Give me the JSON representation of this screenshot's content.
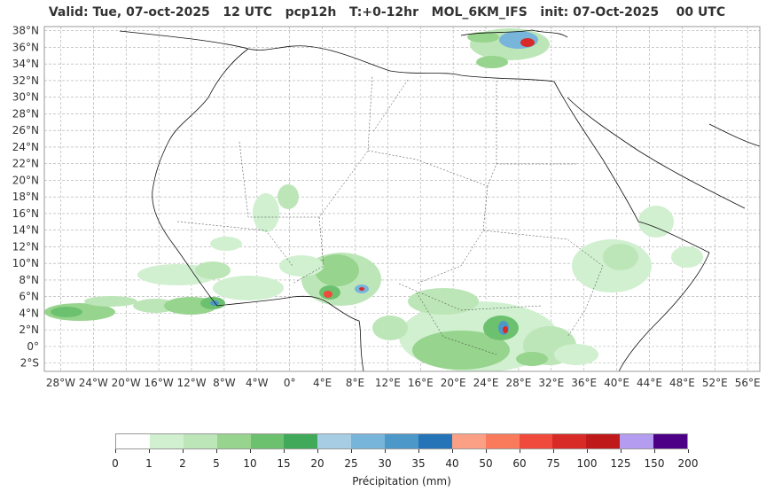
{
  "title": "Valid: Tue, 07-oct-2025   12 UTC   pcp12h   T:+0-12hr   MOL_6KM_IFS   init: 07-Oct-2025    00 UTC",
  "map": {
    "lat_labels": [
      "38°N",
      "36°N",
      "34°N",
      "32°N",
      "30°N",
      "28°N",
      "26°N",
      "24°N",
      "22°N",
      "20°N",
      "18°N",
      "16°N",
      "14°N",
      "12°N",
      "10°N",
      "8°N",
      "6°N",
      "4°N",
      "2°N",
      "0°",
      "2°S"
    ],
    "lon_labels": [
      "28°W",
      "24°W",
      "20°W",
      "16°W",
      "12°W",
      "8°W",
      "4°W",
      "0°",
      "4°E",
      "8°E",
      "12°E",
      "16°E",
      "20°E",
      "24°E",
      "28°E",
      "32°E",
      "36°E",
      "40°E",
      "44°E",
      "48°E",
      "52°E",
      "56°E"
    ],
    "lat_values": [
      38,
      36,
      34,
      32,
      30,
      28,
      26,
      24,
      22,
      20,
      18,
      16,
      14,
      12,
      10,
      8,
      6,
      4,
      2,
      0,
      -2
    ],
    "lon_values": [
      -28,
      -24,
      -20,
      -16,
      -12,
      -8,
      -4,
      0,
      4,
      8,
      12,
      16,
      20,
      24,
      28,
      32,
      36,
      40,
      44,
      48,
      52,
      56
    ],
    "extent": {
      "lon_min": -30,
      "lon_max": 57.5,
      "lat_min": -3,
      "lat_max": 38.5
    },
    "gridlines": true
  },
  "colorbar": {
    "label": "Précipitation (mm)",
    "ticks": [
      "0",
      "1",
      "2",
      "5",
      "10",
      "15",
      "20",
      "25",
      "30",
      "35",
      "40",
      "50",
      "60",
      "75",
      "100",
      "125",
      "150",
      "200"
    ],
    "colors": [
      "#ffffff",
      "#d0f0d0",
      "#bde6b8",
      "#97d48d",
      "#6cc16f",
      "#40a95a",
      "#a6cde3",
      "#78b5da",
      "#4b98c9",
      "#2574b8",
      "#fca085",
      "#fa7a5c",
      "#f04a3c",
      "#d82a27",
      "#c01919",
      "#b49cf0",
      "#4b0085"
    ]
  }
}
